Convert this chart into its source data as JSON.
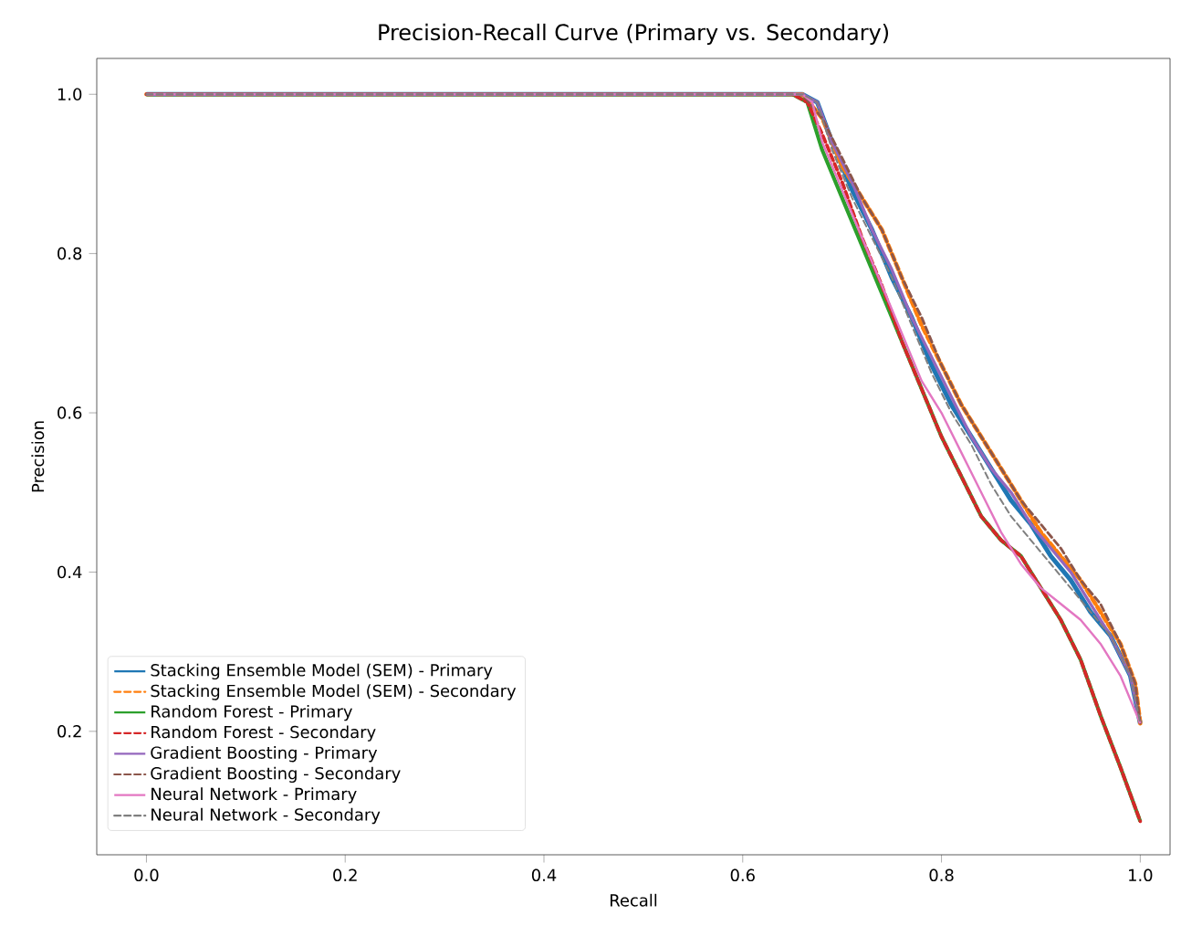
{
  "chart_data": {
    "type": "line",
    "title": "Precision-Recall Curve (Primary vs. Secondary)",
    "xlabel": "Recall",
    "ylabel": "Precision",
    "xlim": [
      -0.05,
      1.03
    ],
    "ylim": [
      0.045,
      1.045
    ],
    "xticks": [
      {
        "value": 0,
        "label": "0.0"
      },
      {
        "value": 0.2,
        "label": "0.2"
      },
      {
        "value": 0.4,
        "label": "0.4"
      },
      {
        "value": 0.6,
        "label": "0.6"
      },
      {
        "value": 0.8,
        "label": "0.8"
      },
      {
        "value": 1,
        "label": "1.0"
      }
    ],
    "yticks": [
      {
        "value": 0.2,
        "label": "0.2"
      },
      {
        "value": 0.4,
        "label": "0.4"
      },
      {
        "value": 0.6,
        "label": "0.6"
      },
      {
        "value": 0.8,
        "label": "0.8"
      },
      {
        "value": 1,
        "label": "1.0"
      }
    ],
    "legend": "bottom left",
    "grid": false,
    "series": [
      {
        "name": "Stacking Ensemble Model (SEM) - Primary",
        "color": "#1f77b4",
        "line_style": "solid",
        "x": [
          0,
          0.66,
          0.675,
          0.69,
          0.71,
          0.73,
          0.75,
          0.77,
          0.79,
          0.81,
          0.83,
          0.85,
          0.87,
          0.89,
          0.91,
          0.93,
          0.95,
          0.97,
          0.99,
          1.0
        ],
        "values": [
          1.0,
          1.0,
          0.99,
          0.94,
          0.88,
          0.83,
          0.77,
          0.72,
          0.66,
          0.61,
          0.57,
          0.53,
          0.49,
          0.46,
          0.42,
          0.39,
          0.35,
          0.32,
          0.27,
          0.21
        ]
      },
      {
        "name": "Stacking Ensemble Model (SEM) - Secondary",
        "color": "#ff7f0e",
        "line_style": "dashed",
        "x": [
          0,
          0.66,
          0.68,
          0.7,
          0.72,
          0.74,
          0.76,
          0.78,
          0.8,
          0.82,
          0.84,
          0.86,
          0.88,
          0.9,
          0.92,
          0.94,
          0.96,
          0.98,
          0.995,
          1.0
        ],
        "values": [
          1.0,
          1.0,
          0.97,
          0.91,
          0.87,
          0.83,
          0.77,
          0.71,
          0.66,
          0.61,
          0.57,
          0.53,
          0.49,
          0.45,
          0.42,
          0.39,
          0.35,
          0.31,
          0.26,
          0.21
        ]
      },
      {
        "name": "Random Forest - Primary",
        "color": "#2ca02c",
        "line_style": "solid",
        "x": [
          0,
          0.65,
          0.665,
          0.68,
          0.7,
          0.72,
          0.74,
          0.76,
          0.78,
          0.8,
          0.82,
          0.84,
          0.86,
          0.88,
          0.9,
          0.92,
          0.94,
          0.96,
          0.98,
          1.0
        ],
        "values": [
          1.0,
          1.0,
          0.99,
          0.93,
          0.87,
          0.81,
          0.75,
          0.69,
          0.63,
          0.57,
          0.52,
          0.47,
          0.44,
          0.42,
          0.38,
          0.34,
          0.29,
          0.22,
          0.155,
          0.087
        ]
      },
      {
        "name": "Random Forest - Secondary",
        "color": "#d62728",
        "line_style": "dashed",
        "x": [
          0,
          0.65,
          0.665,
          0.68,
          0.7,
          0.72,
          0.74,
          0.76,
          0.78,
          0.8,
          0.82,
          0.84,
          0.86,
          0.88,
          0.9,
          0.92,
          0.94,
          0.96,
          0.98,
          1.0
        ],
        "values": [
          1.0,
          1.0,
          0.99,
          0.95,
          0.89,
          0.82,
          0.76,
          0.69,
          0.63,
          0.57,
          0.52,
          0.47,
          0.44,
          0.42,
          0.38,
          0.34,
          0.29,
          0.22,
          0.155,
          0.087
        ]
      },
      {
        "name": "Gradient Boosting - Primary",
        "color": "#9467bd",
        "line_style": "solid",
        "x": [
          0,
          0.66,
          0.675,
          0.69,
          0.71,
          0.73,
          0.75,
          0.77,
          0.79,
          0.81,
          0.83,
          0.85,
          0.87,
          0.89,
          0.91,
          0.93,
          0.95,
          0.97,
          0.99,
          1.0
        ],
        "values": [
          1.0,
          1.0,
          0.99,
          0.94,
          0.89,
          0.83,
          0.78,
          0.72,
          0.67,
          0.62,
          0.57,
          0.53,
          0.5,
          0.46,
          0.43,
          0.4,
          0.36,
          0.32,
          0.27,
          0.21
        ]
      },
      {
        "name": "Gradient Boosting - Secondary",
        "color": "#8c564b",
        "line_style": "dashed",
        "x": [
          0,
          0.66,
          0.68,
          0.7,
          0.72,
          0.74,
          0.76,
          0.78,
          0.8,
          0.82,
          0.84,
          0.86,
          0.88,
          0.9,
          0.92,
          0.94,
          0.96,
          0.98,
          0.995,
          1.0
        ],
        "values": [
          1.0,
          1.0,
          0.97,
          0.92,
          0.87,
          0.83,
          0.77,
          0.72,
          0.66,
          0.61,
          0.57,
          0.53,
          0.49,
          0.46,
          0.43,
          0.39,
          0.36,
          0.31,
          0.26,
          0.21
        ]
      },
      {
        "name": "Neural Network - Primary",
        "color": "#e377c2",
        "line_style": "solid",
        "x": [
          0,
          0.66,
          0.67,
          0.68,
          0.7,
          0.72,
          0.74,
          0.76,
          0.78,
          0.8,
          0.82,
          0.84,
          0.86,
          0.88,
          0.9,
          0.92,
          0.94,
          0.96,
          0.98,
          1.0
        ],
        "values": [
          1.0,
          1.0,
          0.99,
          0.94,
          0.88,
          0.82,
          0.76,
          0.7,
          0.64,
          0.6,
          0.55,
          0.5,
          0.45,
          0.41,
          0.38,
          0.36,
          0.34,
          0.31,
          0.27,
          0.21
        ]
      },
      {
        "name": "Neural Network - Secondary",
        "color": "#7f7f7f",
        "line_style": "dashed",
        "x": [
          0,
          0.66,
          0.675,
          0.69,
          0.71,
          0.73,
          0.75,
          0.77,
          0.79,
          0.81,
          0.83,
          0.85,
          0.87,
          0.89,
          0.91,
          0.93,
          0.95,
          0.97,
          0.99,
          1.0
        ],
        "values": [
          1.0,
          1.0,
          0.99,
          0.93,
          0.87,
          0.82,
          0.77,
          0.71,
          0.65,
          0.6,
          0.56,
          0.51,
          0.47,
          0.44,
          0.41,
          0.38,
          0.35,
          0.32,
          0.27,
          0.21
        ]
      }
    ]
  }
}
